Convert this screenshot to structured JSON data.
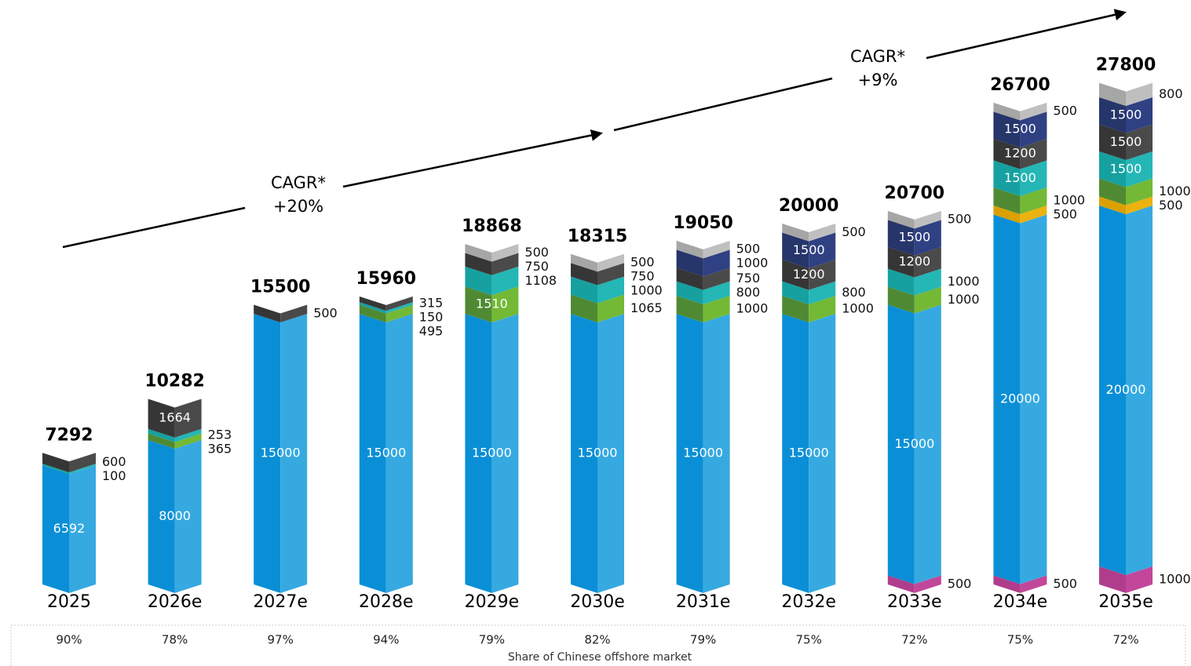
{
  "chart_data": {
    "type": "stacked-bar",
    "categories": [
      "2025",
      "2026e",
      "2027e",
      "2028e",
      "2029e",
      "2030e",
      "2031e",
      "2032e",
      "2033e",
      "2034e",
      "2035e"
    ],
    "series": [
      {
        "color": "#c2479a",
        "color_dark": "#b03d8c",
        "values": [
          null,
          null,
          null,
          null,
          null,
          null,
          null,
          null,
          500,
          500,
          1000
        ]
      },
      {
        "color": "#36a9e1",
        "color_dark": "#0a8fd6",
        "values": [
          6592,
          8000,
          15000,
          15000,
          15000,
          15000,
          15000,
          15000,
          15000,
          20000,
          20000
        ]
      },
      {
        "color": "#ecb210",
        "color_dark": "#d9a000",
        "values": [
          null,
          null,
          null,
          null,
          null,
          null,
          null,
          null,
          null,
          500,
          500
        ]
      },
      {
        "color": "#73b935",
        "color_dark": "#4f8a33",
        "values": [
          null,
          365,
          null,
          495,
          1510,
          1065,
          1000,
          1000,
          1000,
          1000,
          1000
        ]
      },
      {
        "color": "#25b6b6",
        "color_dark": "#16a0a0",
        "values": [
          100,
          253,
          null,
          150,
          1108,
          1000,
          800,
          800,
          1000,
          1500,
          1500
        ]
      },
      {
        "color": "#4a4a4a",
        "color_dark": "#363636",
        "values": [
          600,
          1664,
          500,
          315,
          750,
          750,
          750,
          1200,
          1200,
          1200,
          1500
        ]
      },
      {
        "color": "#2f4182",
        "color_dark": "#26356a",
        "values": [
          null,
          null,
          null,
          null,
          null,
          null,
          1000,
          1500,
          1500,
          1500,
          1500
        ]
      },
      {
        "color": "#bfbfbf",
        "color_dark": "#a6a6a6",
        "values": [
          null,
          null,
          null,
          null,
          500,
          500,
          500,
          500,
          500,
          500,
          800
        ]
      }
    ],
    "totals": [
      7292,
      10282,
      15500,
      15960,
      18868,
      18315,
      19050,
      20000,
      20700,
      26700,
      27800
    ],
    "shares": [
      90,
      78,
      97,
      94,
      79,
      82,
      79,
      75,
      72,
      75,
      72
    ],
    "share_labels": [
      "90%",
      "78%",
      "97%",
      "94%",
      "79%",
      "82%",
      "79%",
      "75%",
      "72%",
      "75%",
      "72%"
    ],
    "share_title": "Share of Chinese offshore market",
    "annotations": [
      [
        "CAGR*",
        "+20%"
      ],
      [
        "CAGR*",
        "+9%"
      ]
    ]
  }
}
